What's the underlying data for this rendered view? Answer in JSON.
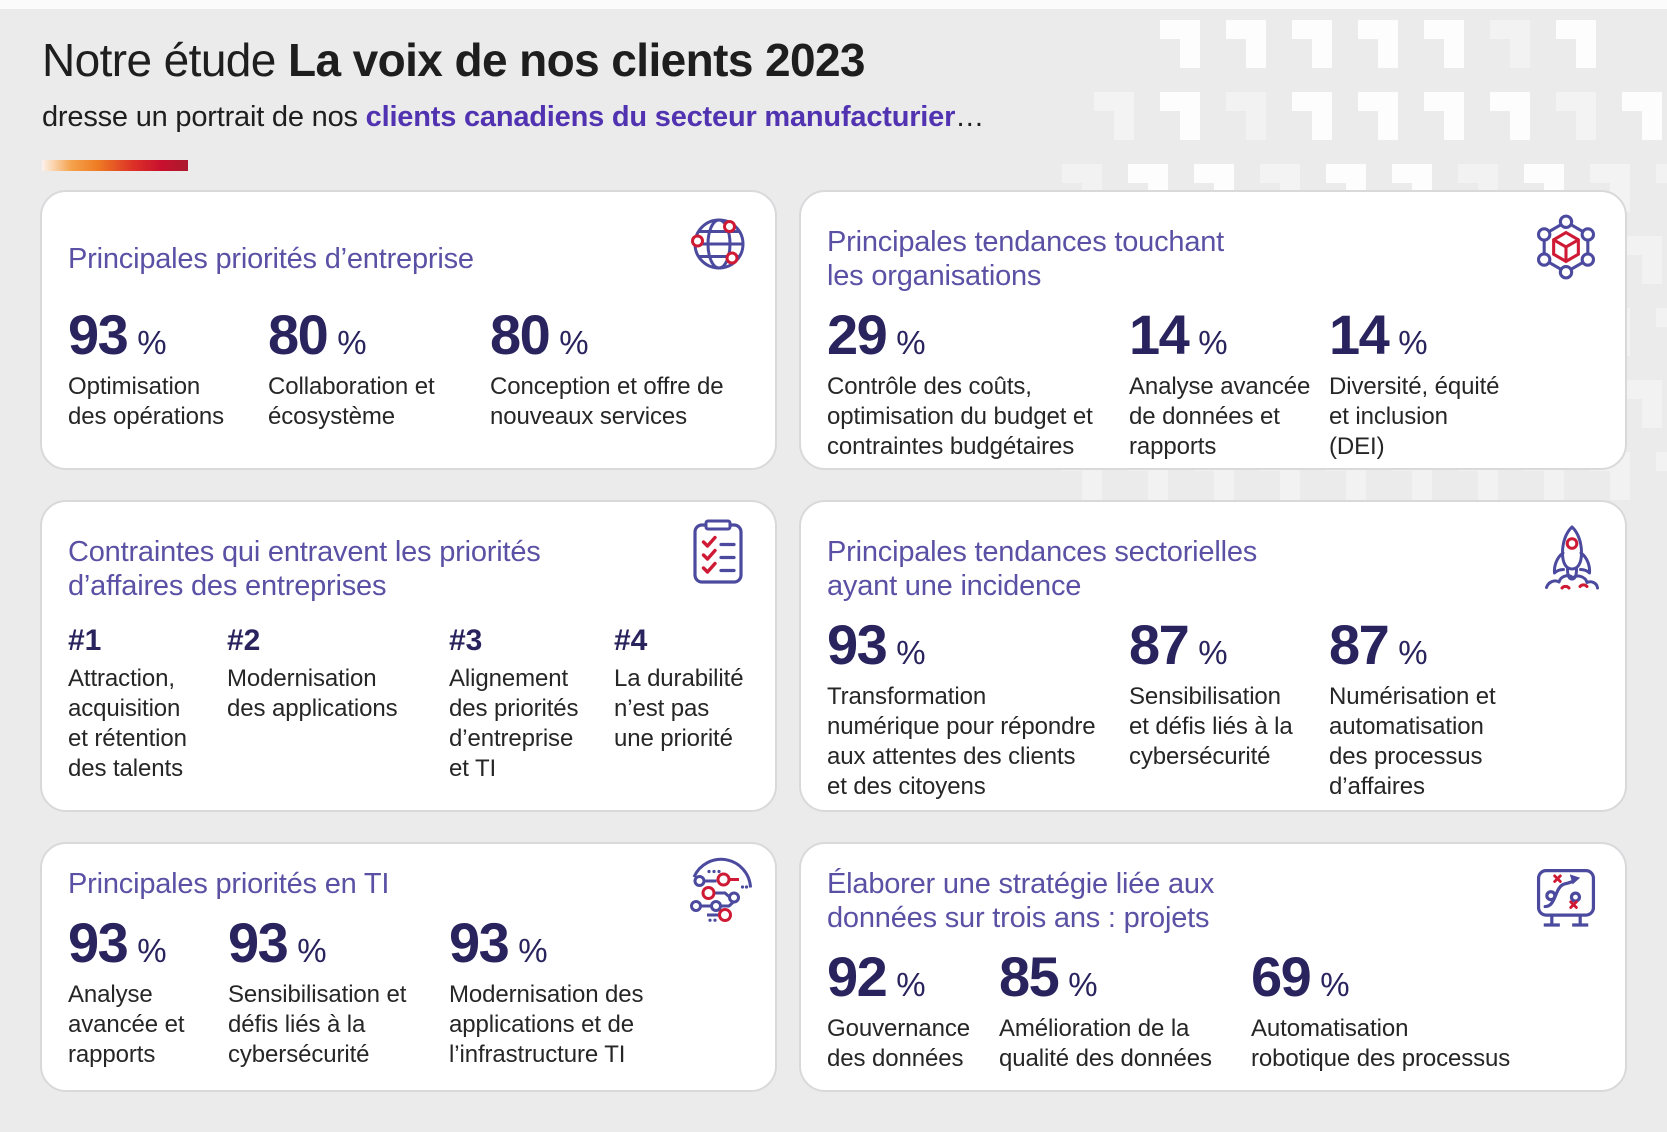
{
  "header": {
    "title_prefix": "Notre étude ",
    "title_bold": "La voix de nos clients 2023",
    "subtitle_prefix": "dresse un portrait de nos ",
    "subtitle_highlight": "clients canadiens du secteur manufacturier",
    "subtitle_suffix": "…"
  },
  "theme": {
    "page_background": "#ebebec",
    "card_title_color": "#5a51a5",
    "stat_number_color": "#29235e",
    "subtitle_highlight_color": "#5133b1",
    "icon_purple": "#4b4a9f",
    "icon_red": "#cf1a35",
    "accent_gradient": [
      "#fdf2ec",
      "#ee7c23",
      "#c8102e"
    ]
  },
  "cards": [
    {
      "id": "business-priorities",
      "icon": "globe-icon",
      "title": "Principales priorités d’entreprise",
      "stats": [
        {
          "value": "93",
          "unit": "%",
          "label": "Optimisation\ndes opérations"
        },
        {
          "value": "80",
          "unit": "%",
          "label": "Collaboration et\nécosystème"
        },
        {
          "value": "80",
          "unit": "%",
          "label": "Conception et offre de\nnouveaux services"
        }
      ]
    },
    {
      "id": "organization-trends",
      "icon": "network-cube-icon",
      "title": "Principales tendances touchant\nles organisations",
      "stats": [
        {
          "value": "29",
          "unit": "%",
          "label": "Contrôle des coûts,\noptimisation du budget et\ncontraintes budgétaires"
        },
        {
          "value": "14",
          "unit": "%",
          "label": "Analyse avancée\nde données et\nrapports"
        },
        {
          "value": "14",
          "unit": "%",
          "label": "Diversité, équité\net inclusion\n(DEI)"
        }
      ]
    },
    {
      "id": "business-constraints",
      "icon": "checklist-icon",
      "title": "Contraintes qui entravent les priorités\nd’affaires des entreprises",
      "stats": [
        {
          "value": "#1",
          "unit": "",
          "label": "Attraction,\nacquisition\net rétention\ndes talents"
        },
        {
          "value": "#2",
          "unit": "",
          "label": "Modernisation\ndes applications"
        },
        {
          "value": "#3",
          "unit": "",
          "label": "Alignement\ndes priorités\nd’entreprise\net TI"
        },
        {
          "value": "#4",
          "unit": "",
          "label": "La durabilité\nn’est pas\nune priorité"
        }
      ]
    },
    {
      "id": "sector-trends",
      "icon": "rocket-icon",
      "title": "Principales tendances sectorielles\nayant une incidence",
      "stats": [
        {
          "value": "93",
          "unit": "%",
          "label": "Transformation\nnumérique pour répondre\naux attentes des clients\net des citoyens"
        },
        {
          "value": "87",
          "unit": "%",
          "label": "Sensibilisation\net défis liés à la\ncybersécurité"
        },
        {
          "value": "87",
          "unit": "%",
          "label": "Numérisation et\nautomatisation\ndes processus\nd’affaires"
        }
      ]
    },
    {
      "id": "it-priorities",
      "icon": "circuit-icon",
      "title": "Principales priorités en TI",
      "stats": [
        {
          "value": "93",
          "unit": "%",
          "label": "Analyse\navancée et\nrapports"
        },
        {
          "value": "93",
          "unit": "%",
          "label": "Sensibilisation et\ndéfis liés à la\ncybersécurité"
        },
        {
          "value": "93",
          "unit": "%",
          "label": "Modernisation des\napplications et de\nl’infrastructure TI"
        }
      ]
    },
    {
      "id": "data-strategy-projects",
      "icon": "strategy-board-icon",
      "title": "Élaborer une stratégie liée aux\ndonnées sur trois ans : projets",
      "stats": [
        {
          "value": "92",
          "unit": "%",
          "label": "Gouvernance\ndes données"
        },
        {
          "value": "85",
          "unit": "%",
          "label": "Amélioration de la\nqualité des données"
        },
        {
          "value": "69",
          "unit": "%",
          "label": "Automatisation\nrobotique des processus"
        }
      ]
    }
  ]
}
